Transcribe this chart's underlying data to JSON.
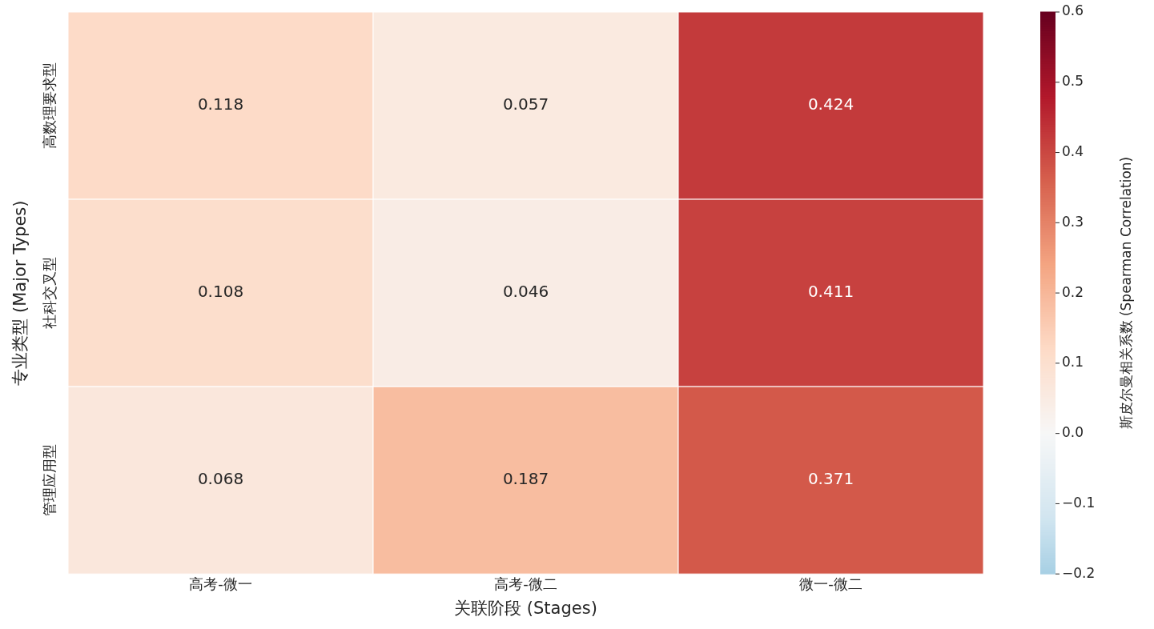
{
  "chart_data": {
    "type": "heatmap",
    "xlabel": "关联阶段 (Stages)",
    "ylabel": "专业类型 (Major Types)",
    "clabel": "斯皮尔曼相关系数 (Spearman Correlation)",
    "categories": [
      "高考-微一",
      "高考-微二",
      "微一-微二"
    ],
    "y_categories": [
      "高数理要求型",
      "社科交叉型",
      "管理应用型"
    ],
    "cells": [
      [
        0.118,
        0.057,
        0.424
      ],
      [
        0.108,
        0.046,
        0.411
      ],
      [
        0.068,
        0.187,
        0.371
      ]
    ],
    "data_labels": true,
    "clim": [
      -0.2,
      0.6
    ],
    "cticks": [
      {
        "value": -0.2,
        "label": "−0.2"
      },
      {
        "value": -0.1,
        "label": "−0.1"
      },
      {
        "value": 0,
        "label": "0.0"
      },
      0.1,
      0.2,
      0.3,
      0.4,
      0.5,
      0.6
    ]
  }
}
